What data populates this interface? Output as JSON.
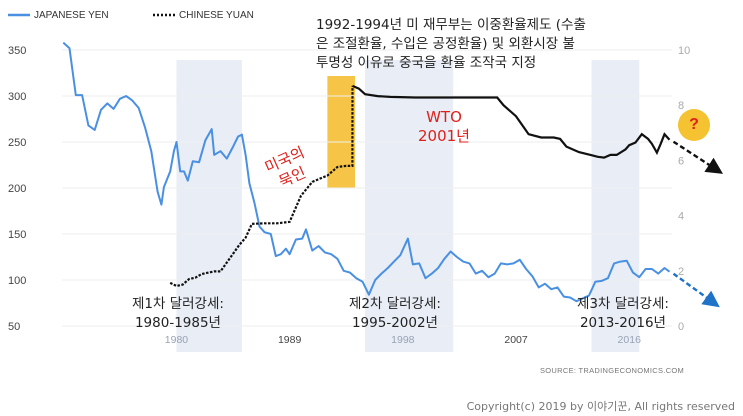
{
  "chart_data": {
    "type": "line",
    "legend": {
      "placement": "top-left",
      "entries": [
        "JAPANESE YEN",
        "CHINESE YUAN"
      ]
    },
    "x_ticks": [
      "1980",
      "1989",
      "1998",
      "2007",
      "2016"
    ],
    "y_left": {
      "ticks": [
        "350",
        "300",
        "250",
        "200",
        "150",
        "100",
        "50"
      ],
      "range": [
        50,
        350
      ]
    },
    "y_right": {
      "ticks": [
        "10",
        "8",
        "6",
        "4",
        "2",
        "0"
      ],
      "range": [
        0,
        10
      ]
    },
    "series": [
      {
        "name": "JAPANESE YEN",
        "axis": "left",
        "color": "#4a90e2",
        "style": "solid",
        "points": [
          [
            1971.0,
            358
          ],
          [
            1971.5,
            352
          ],
          [
            1972.0,
            301
          ],
          [
            1972.5,
            301
          ],
          [
            1973.0,
            268
          ],
          [
            1973.5,
            263
          ],
          [
            1974.0,
            285
          ],
          [
            1974.5,
            292
          ],
          [
            1975.0,
            286
          ],
          [
            1975.5,
            297
          ],
          [
            1976.0,
            300
          ],
          [
            1976.5,
            295
          ],
          [
            1977.0,
            287
          ],
          [
            1977.5,
            266
          ],
          [
            1978.0,
            240
          ],
          [
            1978.5,
            196
          ],
          [
            1978.8,
            182
          ],
          [
            1979.0,
            201
          ],
          [
            1979.5,
            218
          ],
          [
            1979.8,
            240
          ],
          [
            1980.0,
            250
          ],
          [
            1980.3,
            218
          ],
          [
            1980.6,
            218
          ],
          [
            1980.9,
            208
          ],
          [
            1981.3,
            229
          ],
          [
            1981.8,
            228
          ],
          [
            1982.3,
            252
          ],
          [
            1982.8,
            264
          ],
          [
            1983.0,
            236
          ],
          [
            1983.5,
            240
          ],
          [
            1984.0,
            232
          ],
          [
            1984.5,
            245
          ],
          [
            1984.9,
            256
          ],
          [
            1985.2,
            258
          ],
          [
            1985.5,
            236
          ],
          [
            1985.8,
            205
          ],
          [
            1986.2,
            184
          ],
          [
            1986.6,
            158
          ],
          [
            1987.0,
            152
          ],
          [
            1987.5,
            150
          ],
          [
            1987.9,
            126
          ],
          [
            1988.3,
            128
          ],
          [
            1988.7,
            134
          ],
          [
            1989.0,
            128
          ],
          [
            1989.5,
            144
          ],
          [
            1990.0,
            145
          ],
          [
            1990.3,
            155
          ],
          [
            1990.8,
            132
          ],
          [
            1991.3,
            137
          ],
          [
            1991.8,
            130
          ],
          [
            1992.3,
            128
          ],
          [
            1992.8,
            123
          ],
          [
            1993.3,
            110
          ],
          [
            1993.8,
            108
          ],
          [
            1994.3,
            102
          ],
          [
            1994.8,
            98
          ],
          [
            1995.3,
            84
          ],
          [
            1995.8,
            100
          ],
          [
            1996.3,
            107
          ],
          [
            1996.8,
            113
          ],
          [
            1997.3,
            120
          ],
          [
            1997.8,
            127
          ],
          [
            1998.4,
            145
          ],
          [
            1998.8,
            117
          ],
          [
            1999.3,
            118
          ],
          [
            1999.8,
            102
          ],
          [
            2000.3,
            107
          ],
          [
            2000.8,
            113
          ],
          [
            2001.3,
            123
          ],
          [
            2001.8,
            131
          ],
          [
            2002.3,
            125
          ],
          [
            2002.8,
            120
          ],
          [
            2003.3,
            118
          ],
          [
            2003.8,
            107
          ],
          [
            2004.3,
            110
          ],
          [
            2004.8,
            103
          ],
          [
            2005.3,
            107
          ],
          [
            2005.8,
            118
          ],
          [
            2006.3,
            117
          ],
          [
            2006.8,
            118
          ],
          [
            2007.3,
            122
          ],
          [
            2007.8,
            112
          ],
          [
            2008.3,
            104
          ],
          [
            2008.8,
            92
          ],
          [
            2009.3,
            96
          ],
          [
            2009.8,
            90
          ],
          [
            2010.3,
            92
          ],
          [
            2010.8,
            82
          ],
          [
            2011.3,
            81
          ],
          [
            2011.8,
            77
          ],
          [
            2012.3,
            80
          ],
          [
            2012.8,
            83
          ],
          [
            2013.3,
            98
          ],
          [
            2013.8,
            99
          ],
          [
            2014.3,
            102
          ],
          [
            2014.8,
            118
          ],
          [
            2015.3,
            120
          ],
          [
            2015.8,
            121
          ],
          [
            2016.3,
            108
          ],
          [
            2016.8,
            103
          ],
          [
            2017.3,
            112
          ],
          [
            2017.8,
            112
          ],
          [
            2018.3,
            107
          ],
          [
            2018.8,
            113
          ],
          [
            2019.2,
            109
          ]
        ]
      },
      {
        "name": "CHINESE YUAN",
        "axis": "right",
        "color": "#111111",
        "style": "dotted-to-solid",
        "points": [
          [
            1979.5,
            1.56
          ],
          [
            1980.0,
            1.45
          ],
          [
            1980.5,
            1.5
          ],
          [
            1981.0,
            1.7
          ],
          [
            1981.5,
            1.75
          ],
          [
            1982.0,
            1.88
          ],
          [
            1982.5,
            1.93
          ],
          [
            1983.0,
            1.98
          ],
          [
            1983.5,
            1.98
          ],
          [
            1984.0,
            2.3
          ],
          [
            1984.5,
            2.62
          ],
          [
            1985.0,
            2.94
          ],
          [
            1985.5,
            3.2
          ],
          [
            1986.0,
            3.7
          ],
          [
            1987.0,
            3.72
          ],
          [
            1988.0,
            3.72
          ],
          [
            1989.0,
            3.77
          ],
          [
            1989.9,
            4.72
          ],
          [
            1990.8,
            5.22
          ],
          [
            1991.5,
            5.36
          ],
          [
            1992.0,
            5.45
          ],
          [
            1992.8,
            5.76
          ],
          [
            1993.5,
            5.8
          ],
          [
            1993.99,
            5.8
          ],
          [
            1994.0,
            8.7
          ],
          [
            1994.5,
            8.6
          ],
          [
            1995.0,
            8.4
          ],
          [
            1996.0,
            8.33
          ],
          [
            1997.0,
            8.3
          ],
          [
            1999.0,
            8.28
          ],
          [
            2001.0,
            8.28
          ],
          [
            2003.0,
            8.28
          ],
          [
            2004.5,
            8.28
          ],
          [
            2005.5,
            8.28
          ],
          [
            2006.0,
            8.0
          ],
          [
            2007.0,
            7.6
          ],
          [
            2008.0,
            6.95
          ],
          [
            2009.0,
            6.83
          ],
          [
            2010.0,
            6.83
          ],
          [
            2010.5,
            6.78
          ],
          [
            2011.0,
            6.5
          ],
          [
            2012.0,
            6.3
          ],
          [
            2013.0,
            6.19
          ],
          [
            2013.5,
            6.13
          ],
          [
            2014.0,
            6.1
          ],
          [
            2014.5,
            6.2
          ],
          [
            2015.0,
            6.2
          ],
          [
            2015.7,
            6.4
          ],
          [
            2016.0,
            6.55
          ],
          [
            2016.5,
            6.65
          ],
          [
            2017.0,
            6.95
          ],
          [
            2017.5,
            6.78
          ],
          [
            2017.8,
            6.6
          ],
          [
            2018.2,
            6.28
          ],
          [
            2018.5,
            6.6
          ],
          [
            2018.8,
            6.95
          ],
          [
            2019.2,
            6.75
          ]
        ]
      }
    ],
    "shaded_periods": [
      {
        "from": 1980.0,
        "to": 1985.2,
        "color": "#e8edf6"
      },
      {
        "from": 1995.0,
        "to": 2002.0,
        "color": "#e8edf6"
      },
      {
        "from": 2013.0,
        "to": 2016.8,
        "color": "#e8edf6"
      },
      {
        "from": 1992.0,
        "to": 1994.2,
        "color": "#f6c548"
      }
    ],
    "trend_arrows": [
      {
        "color": "#111111",
        "style": "dashed"
      },
      {
        "color": "#1e73c8",
        "style": "dashed"
      }
    ],
    "annotations": {
      "manipulator": [
        "1992-1994년 미 재무부는 이중환율제도 (수출",
        "은 조절환율, 수입은 공정환율) 및 외환시장 불",
        "투명성 이유로 중국을 환율 조작국 지정"
      ],
      "us_tacit": [
        "미국의",
        "묵인"
      ],
      "wto": [
        "WTO",
        "2001년"
      ],
      "dollar1": [
        "제1차 달러강세:",
        "1980-1985년"
      ],
      "dollar2": [
        "제2차 달러강세:",
        "1995-2002년"
      ],
      "dollar3": [
        "제3차 달러강세:",
        "2013-2016년"
      ],
      "question": "?"
    },
    "source": "SOURCE:  TRADINGECONOMICS.COM"
  },
  "copyright": "Copyright(c) 2019 by 이야기꾼, All rights reserved"
}
